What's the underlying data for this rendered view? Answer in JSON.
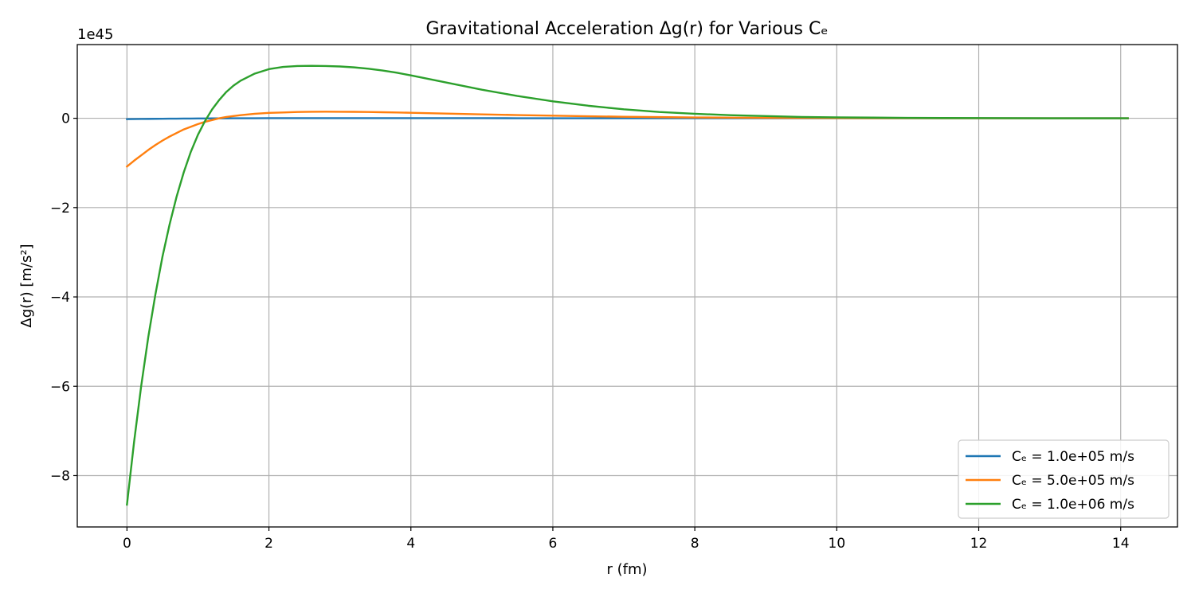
{
  "chart_data": {
    "type": "line",
    "title": "Gravitational Acceleration Δg(r) for Various Cₑ",
    "xlabel": "r (fm)",
    "ylabel": "Δg(r) [m/s²]",
    "y_offset_label": "1e45",
    "xlim": [
      -0.7,
      14.8
    ],
    "ylim": [
      -9.15,
      1.65
    ],
    "xticks": [
      0,
      2,
      4,
      6,
      8,
      10,
      12,
      14
    ],
    "xtick_labels": [
      "0",
      "2",
      "4",
      "6",
      "8",
      "10",
      "12",
      "14"
    ],
    "yticks": [
      0,
      -2,
      -4,
      -6,
      -8
    ],
    "ytick_labels": [
      "0",
      "−2",
      "−4",
      "−6",
      "−8"
    ],
    "grid": true,
    "legend_position": "lower-right",
    "x": [
      0,
      0.1,
      0.2,
      0.3,
      0.4,
      0.5,
      0.6,
      0.7,
      0.8,
      0.9,
      1.0,
      1.1,
      1.2,
      1.3,
      1.4,
      1.5,
      1.6,
      1.8,
      2.0,
      2.2,
      2.4,
      2.6,
      2.8,
      3.0,
      3.2,
      3.4,
      3.6,
      3.8,
      4.0,
      4.5,
      5.0,
      5.5,
      6.0,
      6.5,
      7.0,
      7.5,
      8.0,
      8.5,
      9.0,
      9.5,
      10.0,
      10.5,
      11.0,
      11.5,
      12.0,
      12.5,
      13.0,
      13.5,
      14.1
    ],
    "series": [
      {
        "name": "Cₑ = 1.0e+05 m/s",
        "color": "#1f77b4",
        "values": [
          -0.02,
          -0.018,
          -0.016,
          -0.014,
          -0.012,
          -0.011,
          -0.009,
          -0.008,
          -0.007,
          -0.006,
          -0.005,
          -0.004,
          -0.003,
          -0.002,
          -0.001,
          0.0,
          0.0,
          0.001,
          0.002,
          0.003,
          0.003,
          0.003,
          0.003,
          0.003,
          0.003,
          0.003,
          0.003,
          0.002,
          0.002,
          0.002,
          0.002,
          0.001,
          0.001,
          0.001,
          0.001,
          0.0,
          0.0,
          0.0,
          0.0,
          0.0,
          0.0,
          0.0,
          0.0,
          0.0,
          0.0,
          0.0,
          0.0,
          0.0,
          0.0
        ]
      },
      {
        "name": "Cₑ = 5.0e+05 m/s",
        "color": "#ff7f0e",
        "values": [
          -1.08,
          -0.95,
          -0.83,
          -0.71,
          -0.6,
          -0.5,
          -0.41,
          -0.33,
          -0.25,
          -0.19,
          -0.13,
          -0.08,
          -0.04,
          0.0,
          0.03,
          0.05,
          0.07,
          0.1,
          0.12,
          0.13,
          0.14,
          0.145,
          0.147,
          0.146,
          0.144,
          0.14,
          0.135,
          0.13,
          0.123,
          0.105,
          0.088,
          0.072,
          0.058,
          0.045,
          0.034,
          0.026,
          0.019,
          0.014,
          0.01,
          0.007,
          0.005,
          0.003,
          0.002,
          0.001,
          0.001,
          0.0,
          0.0,
          0.0,
          0.0
        ]
      },
      {
        "name": "Cₑ = 1.0e+06 m/s",
        "color": "#2ca02c",
        "values": [
          -8.65,
          -7.25,
          -6.0,
          -4.9,
          -3.95,
          -3.1,
          -2.38,
          -1.75,
          -1.21,
          -0.75,
          -0.37,
          -0.06,
          0.2,
          0.41,
          0.59,
          0.73,
          0.84,
          1.0,
          1.1,
          1.15,
          1.17,
          1.175,
          1.17,
          1.16,
          1.14,
          1.11,
          1.07,
          1.02,
          0.96,
          0.8,
          0.64,
          0.5,
          0.38,
          0.28,
          0.2,
          0.14,
          0.1,
          0.07,
          0.05,
          0.03,
          0.02,
          0.015,
          0.01,
          0.006,
          0.004,
          0.002,
          0.001,
          0.0,
          0.0
        ]
      }
    ]
  }
}
